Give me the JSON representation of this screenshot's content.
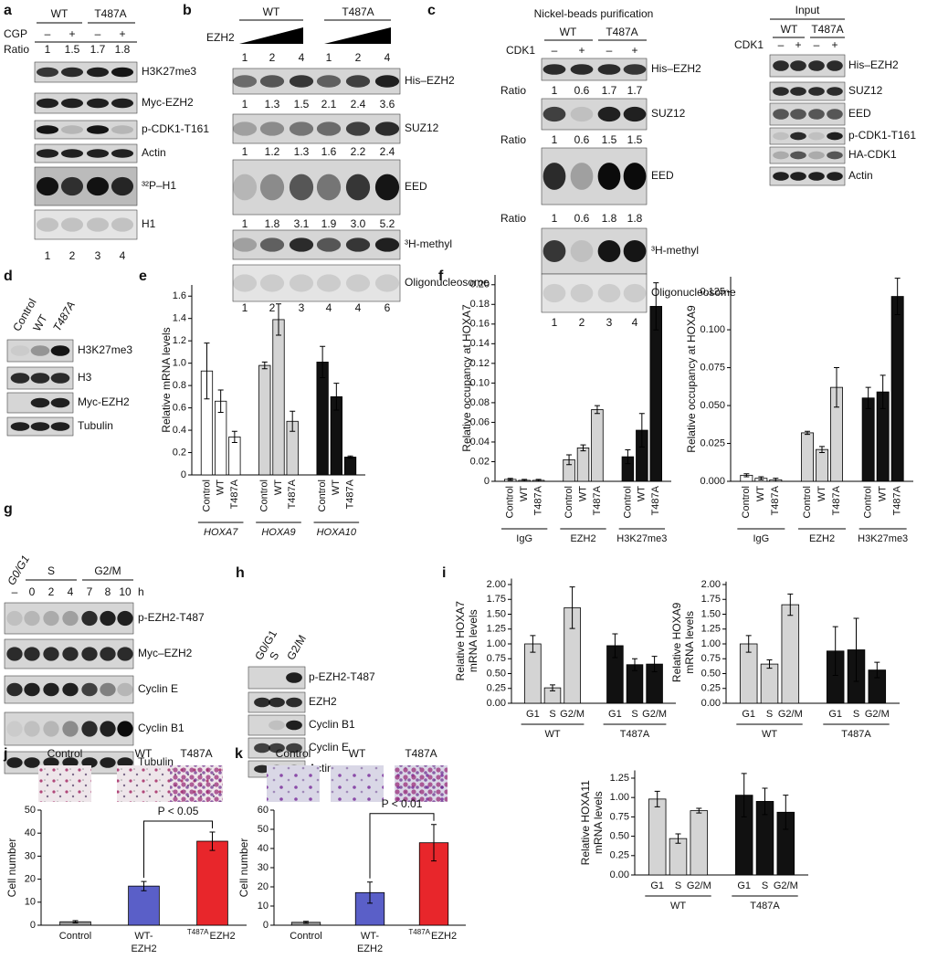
{
  "panels": {
    "a": {
      "letter": "a",
      "groups": [
        "WT",
        "T487A"
      ],
      "treatment": "CGP",
      "signs": [
        "–",
        "+",
        "–",
        "+"
      ],
      "ratio_label": "Ratio",
      "ratios": [
        "1",
        "1.5",
        "1.7",
        "1.8"
      ],
      "blots": [
        "H3K27me3",
        "Myc-EZH2",
        "p-CDK1-T161",
        "Actin",
        "³²P–H1",
        "H1"
      ],
      "lanes": [
        "1",
        "2",
        "3",
        "4"
      ]
    },
    "b": {
      "letter": "b",
      "groups": [
        "WT",
        "T487A"
      ],
      "treatment": "EZH2",
      "doses": [
        "1",
        "2",
        "4",
        "1",
        "2",
        "4"
      ],
      "ratios": [
        [
          "1",
          "1.3",
          "1.5",
          "2.1",
          "2.4",
          "3.6"
        ],
        [
          "1",
          "1.2",
          "1.3",
          "1.6",
          "2.2",
          "2.4"
        ],
        [
          "1",
          "1.8",
          "3.1",
          "1.9",
          "3.0",
          "5.2"
        ]
      ],
      "blots": [
        "His–EZH2",
        "SUZ12",
        "EED",
        "³H-methyl",
        "Oligonucleosome"
      ],
      "lanes": [
        "1",
        "2",
        "3",
        "4",
        "4",
        "6"
      ]
    },
    "c": {
      "letter": "c",
      "title": "Nickel-beads purification",
      "groups": [
        "WT",
        "T487A"
      ],
      "treatment": "CDK1",
      "signs": [
        "–",
        "+",
        "–",
        "+"
      ],
      "ratio_label": "Ratio",
      "ratios": [
        [
          "1",
          "0.6",
          "1.7",
          "1.7"
        ],
        [
          "1",
          "0.6",
          "1.5",
          "1.5"
        ],
        [
          "1",
          "0.6",
          "1.8",
          "1.8"
        ]
      ],
      "blots": [
        "His–EZH2",
        "SUZ12",
        "EED",
        "³H-methyl",
        "Oligonucleosome"
      ],
      "lanes": [
        "1",
        "2",
        "3",
        "4"
      ],
      "input": {
        "title": "Input",
        "groups": [
          "WT",
          "T487A"
        ],
        "treatment": "CDK1",
        "signs": [
          "–",
          "+",
          "–",
          "+"
        ],
        "blots": [
          "His–EZH2",
          "SUZ12",
          "EED",
          "p-CDK1-T161",
          "HA-CDK1",
          "Actin"
        ]
      }
    },
    "d": {
      "letter": "d",
      "lanes": [
        "Control",
        "WT",
        "T487A"
      ],
      "blots": [
        "H3K27me3",
        "H3",
        "Myc-EZH2",
        "Tubulin"
      ]
    },
    "g": {
      "letter": "g",
      "phases": [
        "G0/G1",
        "S",
        "G2/M"
      ],
      "times": [
        "–",
        "0",
        "2",
        "4",
        "7",
        "8",
        "10"
      ],
      "unit": "h",
      "blots": [
        "p-EZH2-T487",
        "Myc–EZH2",
        "Cyclin E",
        "Cyclin B1",
        "Tubulin"
      ]
    },
    "h": {
      "letter": "h",
      "lanes": [
        "G0/G1",
        "S",
        "G2/M"
      ],
      "blots": [
        "p-EZH2-T487",
        "EZH2",
        "Cyclin B1",
        "Cyclin E",
        "Actin"
      ]
    }
  },
  "chart_data": [
    {
      "type": "bar",
      "letter": "e",
      "ylabel": "Relative mRNA levels",
      "categories": [
        "Control",
        "WT",
        "T487A"
      ],
      "series_italic": true,
      "series": [
        {
          "name": "HOXA7",
          "color": "#ffffff",
          "values": [
            0.93,
            0.66,
            0.34
          ],
          "errors": [
            0.25,
            0.1,
            0.05
          ]
        },
        {
          "name": "HOXA9",
          "color": "#d4d4d4",
          "values": [
            0.98,
            1.39,
            0.48
          ],
          "errors": [
            0.03,
            0.14,
            0.09
          ]
        },
        {
          "name": "HOXA10",
          "color": "#111111",
          "values": [
            1.01,
            0.7,
            0.16
          ],
          "errors": [
            0.14,
            0.12,
            0.01
          ]
        }
      ],
      "ylim": [
        0,
        1.7
      ],
      "yticks": [
        0,
        0.2,
        0.4,
        0.6,
        0.8,
        {
          "value": 1,
          "label": "1.0"
        },
        1.2,
        1.4,
        1.6
      ]
    },
    {
      "type": "bar",
      "letter": "f",
      "ylabel": "Relative occupancy at HOXA7",
      "categories": [
        "Control",
        "WT",
        "T487A"
      ],
      "series": [
        {
          "name": "IgG",
          "color": "#ffffff",
          "values": [
            0.002,
            0.001,
            0.001
          ],
          "errors": [
            0.001,
            0.001,
            0.001
          ]
        },
        {
          "name": "EZH2",
          "color": "#d4d4d4",
          "values": [
            0.022,
            0.034,
            0.073
          ],
          "errors": [
            0.005,
            0.003,
            0.004
          ]
        },
        {
          "name": "H3K27me3",
          "color": "#111111",
          "values": [
            0.025,
            0.052,
            0.178
          ],
          "errors": [
            0.007,
            0.017,
            0.024
          ]
        }
      ],
      "ylim": [
        0,
        0.21
      ],
      "yticks": [
        0,
        0.02,
        0.04,
        0.06,
        0.08,
        {
          "value": 0.1,
          "label": "0.10"
        },
        0.12,
        0.14,
        0.16,
        0.18,
        {
          "value": 0.2,
          "label": "0.20"
        }
      ]
    },
    {
      "type": "bar",
      "ylabel": "Relative occupancy at HOXA9",
      "categories": [
        "Control",
        "WT",
        "T487A"
      ],
      "series": [
        {
          "name": "IgG",
          "color": "#ffffff",
          "values": [
            0.004,
            0.002,
            0.001
          ],
          "errors": [
            0.001,
            0.001,
            0.001
          ]
        },
        {
          "name": "EZH2",
          "color": "#d4d4d4",
          "values": [
            0.032,
            0.021,
            0.062
          ],
          "errors": [
            0.001,
            0.002,
            0.013
          ]
        },
        {
          "name": "H3K27me3",
          "color": "#111111",
          "values": [
            0.055,
            0.059,
            0.122
          ],
          "errors": [
            0.007,
            0.011,
            0.012
          ]
        }
      ],
      "ylim": [
        0,
        0.135
      ],
      "yticks": [
        {
          "value": 0,
          "label": "0.000"
        },
        0.025,
        {
          "value": 0.05,
          "label": "0.050"
        },
        0.075,
        {
          "value": 0.1,
          "label": "0.100"
        },
        0.125
      ]
    },
    {
      "type": "bar",
      "letter": "i",
      "ylabel": [
        "Relative HOXA7",
        "mRNA levels"
      ],
      "categories": [
        "G1",
        "S",
        "G2/M"
      ],
      "series": [
        {
          "name": "WT",
          "color": "#d4d4d4",
          "values": [
            1.0,
            0.26,
            1.61
          ],
          "errors": [
            0.14,
            0.05,
            0.35
          ]
        },
        {
          "name": "T487A",
          "color": "#111111",
          "values": [
            0.97,
            0.65,
            0.66
          ],
          "errors": [
            0.2,
            0.1,
            0.13
          ]
        }
      ],
      "ylim": [
        0,
        2.1
      ],
      "yticks": [
        {
          "value": 0,
          "label": "0.00"
        },
        0.25,
        {
          "value": 0.5,
          "label": "0.50"
        },
        0.75,
        {
          "value": 1,
          "label": "1.00"
        },
        1.25,
        {
          "value": 1.5,
          "label": "1.50"
        },
        1.75,
        {
          "value": 2,
          "label": "2.00"
        }
      ]
    },
    {
      "type": "bar",
      "ylabel": [
        "Relative HOXA9",
        "mRNA levels"
      ],
      "categories": [
        "G1",
        "S",
        "G2/M"
      ],
      "series": [
        {
          "name": "WT",
          "color": "#d4d4d4",
          "values": [
            1.0,
            0.66,
            1.66
          ],
          "errors": [
            0.14,
            0.07,
            0.18
          ]
        },
        {
          "name": "T487A",
          "color": "#111111",
          "values": [
            0.88,
            0.9,
            0.56
          ],
          "errors": [
            0.41,
            0.53,
            0.13
          ]
        }
      ],
      "ylim": [
        0,
        2.05
      ],
      "yticks": [
        {
          "value": 0,
          "label": "0.00"
        },
        0.25,
        {
          "value": 0.5,
          "label": "0.50"
        },
        0.75,
        {
          "value": 1,
          "label": "1.00"
        },
        1.25,
        {
          "value": 1.5,
          "label": "1.50"
        },
        1.75,
        {
          "value": 2,
          "label": "2.00"
        }
      ]
    },
    {
      "type": "bar",
      "ylabel": [
        "Relative HOXA11",
        "mRNA levels"
      ],
      "categories": [
        "G1",
        "S",
        "G2/M"
      ],
      "series": [
        {
          "name": "WT",
          "color": "#d4d4d4",
          "values": [
            0.98,
            0.47,
            0.83
          ],
          "errors": [
            0.1,
            0.06,
            0.03
          ]
        },
        {
          "name": "T487A",
          "color": "#111111",
          "values": [
            1.03,
            0.95,
            0.81
          ],
          "errors": [
            0.28,
            0.17,
            0.22
          ]
        }
      ],
      "ylim": [
        0,
        1.35
      ],
      "yticks": [
        {
          "value": 0,
          "label": "0.00"
        },
        0.25,
        {
          "value": 0.5,
          "label": "0.50"
        },
        0.75,
        {
          "value": 1,
          "label": "1.00"
        },
        1.25
      ]
    },
    {
      "type": "bar",
      "letter": "j",
      "images": [
        "Control",
        "WT",
        "T487A"
      ],
      "ylabel": "Cell number",
      "categories": [
        [
          "Control"
        ],
        [
          "WT-",
          "EZH2"
        ],
        [
          "EZH2"
        ]
      ],
      "superscripts": [
        null,
        null,
        "T487A"
      ],
      "values": [
        1.5,
        17,
        36.5
      ],
      "errors": [
        0.5,
        2,
        4
      ],
      "colors": [
        "#999999",
        "#5a5fc8",
        "#e8262b"
      ],
      "annotation": "P < 0.05",
      "ylim": [
        0,
        50
      ],
      "yticks": [
        0,
        10,
        20,
        30,
        40,
        50
      ]
    },
    {
      "type": "bar",
      "letter": "k",
      "images": [
        "Control",
        "WT",
        "T487A"
      ],
      "ylabel": "Cell number",
      "categories": [
        [
          "Control"
        ],
        [
          "WT-",
          "EZH2"
        ],
        [
          "EZH2"
        ]
      ],
      "superscripts": [
        null,
        null,
        "T487A"
      ],
      "values": [
        1.5,
        17,
        43
      ],
      "errors": [
        0.5,
        5.5,
        9.5
      ],
      "colors": [
        "#999999",
        "#5a5fc8",
        "#e8262b"
      ],
      "annotation": "P < 0.01",
      "ylim": [
        0,
        60
      ],
      "yticks": [
        0,
        10,
        20,
        30,
        40,
        50,
        60
      ]
    }
  ]
}
